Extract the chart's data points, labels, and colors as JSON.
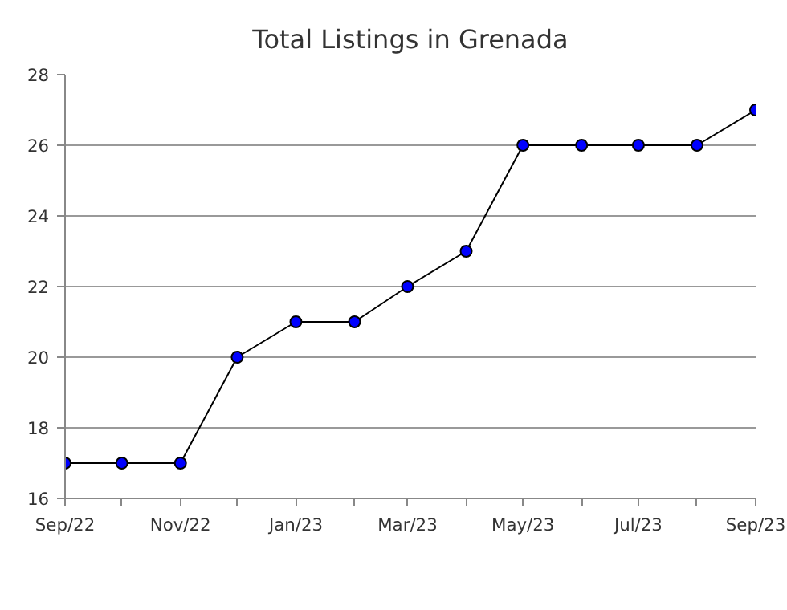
{
  "chart_data": {
    "type": "line",
    "title": "Total Listings in Grenada",
    "x": [
      "2022-09",
      "2022-10",
      "2022-11",
      "2022-12",
      "2023-01",
      "2023-02",
      "2023-03",
      "2023-04",
      "2023-05",
      "2023-06",
      "2023-07",
      "2023-08",
      "2023-09"
    ],
    "series": [
      {
        "color": "#0000ff",
        "values": [
          17,
          17,
          17,
          20,
          21,
          21,
          22,
          23,
          26,
          26,
          26,
          26,
          27
        ]
      }
    ],
    "xlim": [
      "2022-09",
      "2023-09"
    ],
    "xticks": [
      {
        "value": "2022-09",
        "label": "Sep/22"
      },
      {
        "value": "2022-10",
        "label": null
      },
      {
        "value": "2022-11",
        "label": "Nov/22"
      },
      {
        "value": "2022-12",
        "label": null
      },
      {
        "value": "2023-01",
        "label": "Jan/23"
      },
      {
        "value": "2023-02",
        "label": null
      },
      {
        "value": "2023-03",
        "label": "Mar/23"
      },
      {
        "value": "2023-04",
        "label": null
      },
      {
        "value": "2023-05",
        "label": "May/23"
      },
      {
        "value": "2023-06",
        "label": null
      },
      {
        "value": "2023-07",
        "label": "Jul/23"
      },
      {
        "value": "2023-08",
        "label": null
      },
      {
        "value": "2023-09",
        "label": "Sep/23"
      }
    ],
    "ylim": [
      16,
      28
    ],
    "yticks": [
      16,
      18,
      20,
      22,
      24,
      26,
      28
    ],
    "grid": "y",
    "marker": "circle",
    "line_style": "solid"
  }
}
